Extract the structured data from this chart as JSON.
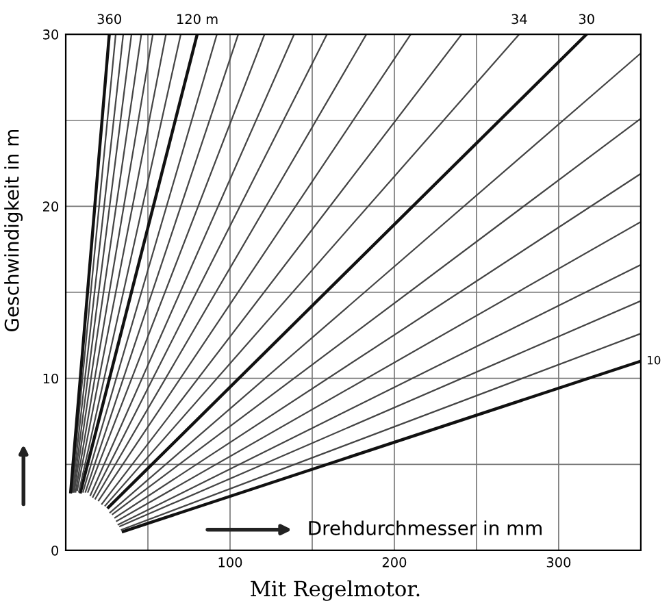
{
  "chart_data": {
    "type": "line",
    "xlabel": "Drehdurchmesser in mm",
    "ylabel": "Geschwindigkeit in m",
    "annotations": [
      "Mit Regelmotor."
    ],
    "xlim": [
      0,
      350
    ],
    "ylim": [
      0,
      30
    ],
    "xticks": [
      {
        "value": 50,
        "label": null
      },
      100,
      {
        "value": 150,
        "label": null
      },
      200,
      {
        "value": 250,
        "label": null
      },
      300
    ],
    "yticks": [
      0,
      {
        "value": 5,
        "label": null
      },
      10,
      {
        "value": 15,
        "label": null
      },
      20,
      {
        "value": 25,
        "label": null
      },
      30
    ],
    "grid": true,
    "legend": false,
    "marker": "none",
    "line_style": "solid",
    "series": [
      {
        "name": "10",
        "color": "#111111",
        "x": [
          35,
          350
        ],
        "values": [
          1.1,
          11.0
        ]
      },
      {
        "color": "#444444",
        "x": [
          34,
          350
        ],
        "values": [
          1.2,
          12.6
        ]
      },
      {
        "color": "#444444",
        "x": [
          33,
          350
        ],
        "values": [
          1.4,
          14.5
        ]
      },
      {
        "color": "#444444",
        "x": [
          32,
          350
        ],
        "values": [
          1.5,
          16.6
        ]
      },
      {
        "color": "#444444",
        "x": [
          31,
          350
        ],
        "values": [
          1.7,
          19.1
        ]
      },
      {
        "color": "#444444",
        "x": [
          30,
          350
        ],
        "values": [
          1.9,
          21.9
        ]
      },
      {
        "color": "#444444",
        "x": [
          28.5,
          350
        ],
        "values": [
          2.1,
          25.1
        ]
      },
      {
        "color": "#444444",
        "x": [
          27,
          350
        ],
        "values": [
          2.2,
          28.9
        ]
      },
      {
        "name": "30",
        "color": "#111111",
        "x": [
          26,
          317
        ],
        "values": [
          2.5,
          30
        ]
      },
      {
        "name": "34",
        "color": "#444444",
        "x": [
          24,
          276
        ],
        "values": [
          2.6,
          30
        ]
      },
      {
        "color": "#444444",
        "x": [
          22,
          241
        ],
        "values": [
          2.7,
          30
        ]
      },
      {
        "color": "#444444",
        "x": [
          20,
          210
        ],
        "values": [
          2.9,
          30
        ]
      },
      {
        "color": "#444444",
        "x": [
          18,
          183
        ],
        "values": [
          3.0,
          30
        ]
      },
      {
        "color": "#444444",
        "x": [
          16.5,
          159
        ],
        "values": [
          3.1,
          30
        ]
      },
      {
        "color": "#444444",
        "x": [
          15,
          139
        ],
        "values": [
          3.2,
          30
        ]
      },
      {
        "color": "#444444",
        "x": [
          13.5,
          121
        ],
        "values": [
          3.4,
          30
        ]
      },
      {
        "color": "#444444",
        "x": [
          12,
          105
        ],
        "values": [
          3.4,
          30
        ]
      },
      {
        "color": "#444444",
        "x": [
          10.5,
          92
        ],
        "values": [
          3.4,
          30
        ]
      },
      {
        "name": "120 m",
        "color": "#111111",
        "x": [
          9,
          80
        ],
        "values": [
          3.4,
          30
        ]
      },
      {
        "color": "#444444",
        "x": [
          8,
          70
        ],
        "values": [
          3.4,
          30
        ]
      },
      {
        "color": "#444444",
        "x": [
          7,
          61
        ],
        "values": [
          3.5,
          30
        ]
      },
      {
        "color": "#444444",
        "x": [
          6,
          53
        ],
        "values": [
          3.4,
          30
        ]
      },
      {
        "color": "#444444",
        "x": [
          5.2,
          46
        ],
        "values": [
          3.4,
          30
        ]
      },
      {
        "color": "#444444",
        "x": [
          4.6,
          40
        ],
        "values": [
          3.4,
          30
        ]
      },
      {
        "color": "#444444",
        "x": [
          4,
          35
        ],
        "values": [
          3.4,
          30
        ]
      },
      {
        "color": "#444444",
        "x": [
          3.5,
          30.4
        ],
        "values": [
          3.4,
          30
        ]
      },
      {
        "name": "360",
        "color": "#111111",
        "x": [
          3,
          26.5
        ],
        "values": [
          3.4,
          30
        ]
      }
    ]
  }
}
